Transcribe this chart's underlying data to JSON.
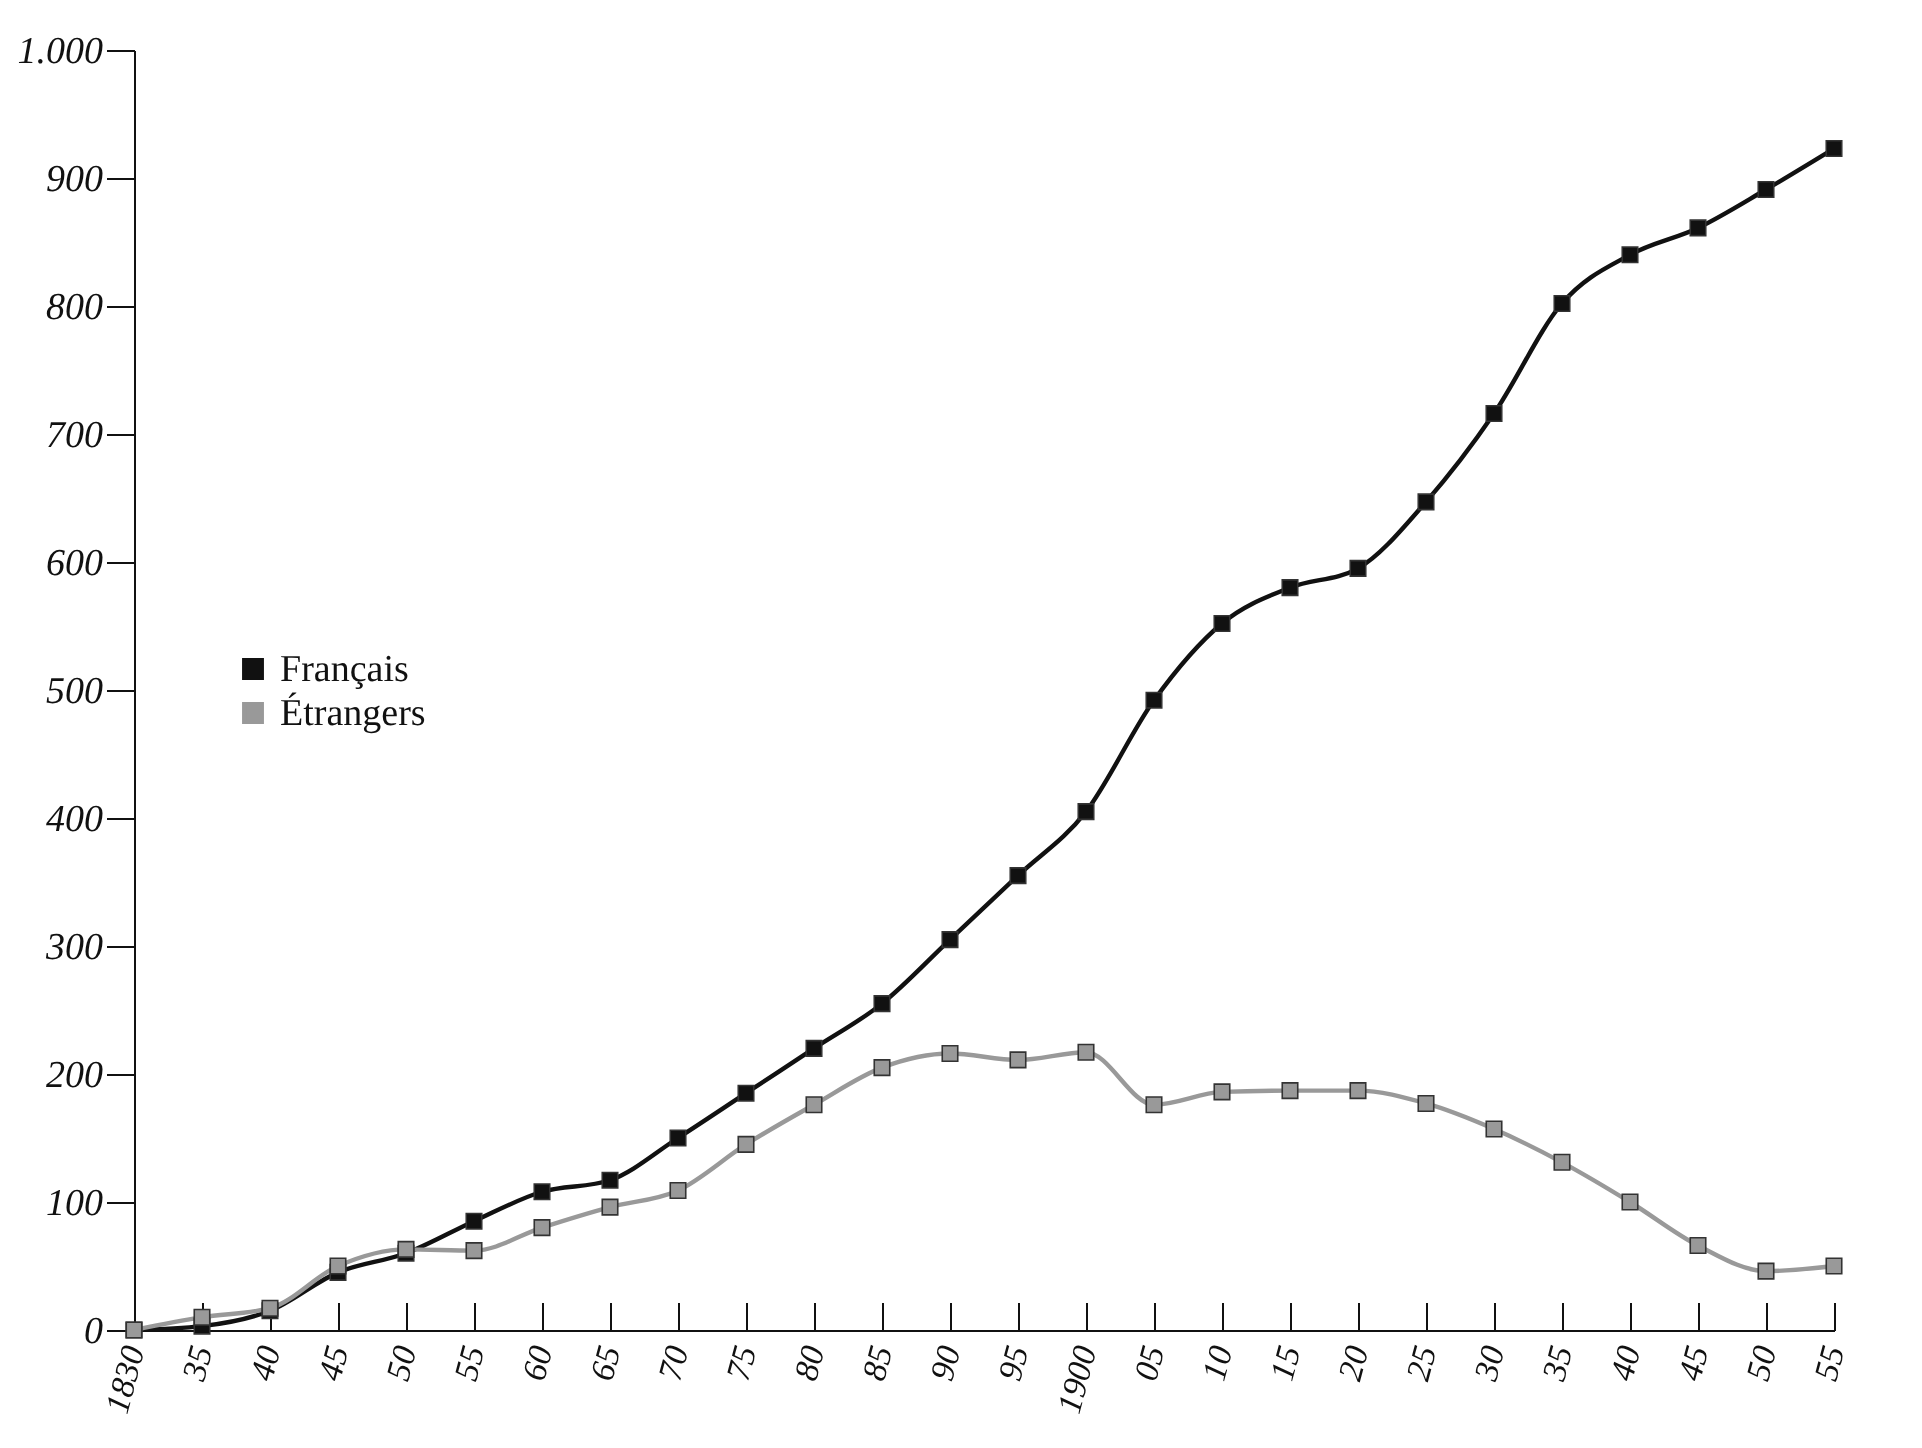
{
  "chart_data": {
    "type": "line",
    "categories": [
      "1830",
      "35",
      "40",
      "45",
      "50",
      "55",
      "60",
      "65",
      "70",
      "75",
      "80",
      "85",
      "90",
      "95",
      "1900",
      "05",
      "10",
      "15",
      "20",
      "25",
      "30",
      "35",
      "40",
      "45",
      "50",
      "55"
    ],
    "series": [
      {
        "name": "Français",
        "color": "#111111",
        "values": [
          0,
          3,
          15,
          45,
          60,
          85,
          108,
          117,
          150,
          185,
          220,
          255,
          305,
          355,
          405,
          492,
          552,
          580,
          595,
          647,
          716,
          802,
          840,
          861,
          891,
          923
        ]
      },
      {
        "name": "Étrangers",
        "color": "#999999",
        "values": [
          0,
          10,
          17,
          50,
          63,
          62,
          80,
          96,
          109,
          145,
          176,
          205,
          216,
          211,
          217,
          176,
          186,
          187,
          187,
          177,
          157,
          131,
          100,
          66,
          46,
          50
        ]
      }
    ],
    "ylim": [
      0,
      1000
    ],
    "yticks": [
      0,
      100,
      200,
      300,
      400,
      500,
      600,
      700,
      800,
      900,
      {
        "value": 1000,
        "label": "1.000"
      }
    ],
    "legend": "left",
    "marker": "square",
    "line_style": "solid",
    "grid": false
  }
}
